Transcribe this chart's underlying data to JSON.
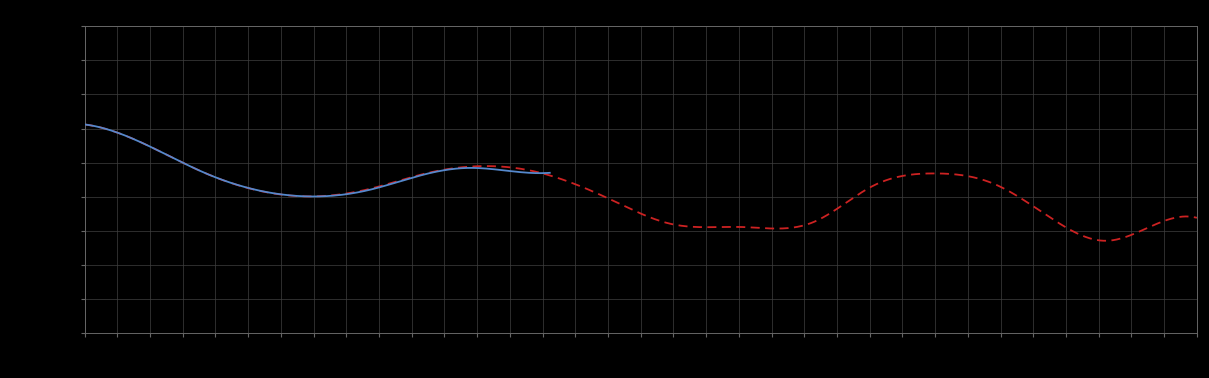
{
  "background_color": "#000000",
  "plot_bg_color": "#000000",
  "grid_color": "#404040",
  "blue_line_color": "#5588cc",
  "red_line_color": "#cc2222",
  "fig_width": 12.09,
  "fig_height": 3.78,
  "dpi": 100,
  "xlim": [
    0,
    110
  ],
  "ylim": [
    0,
    10
  ],
  "n_x_grid": 34,
  "n_y_grid": 9
}
